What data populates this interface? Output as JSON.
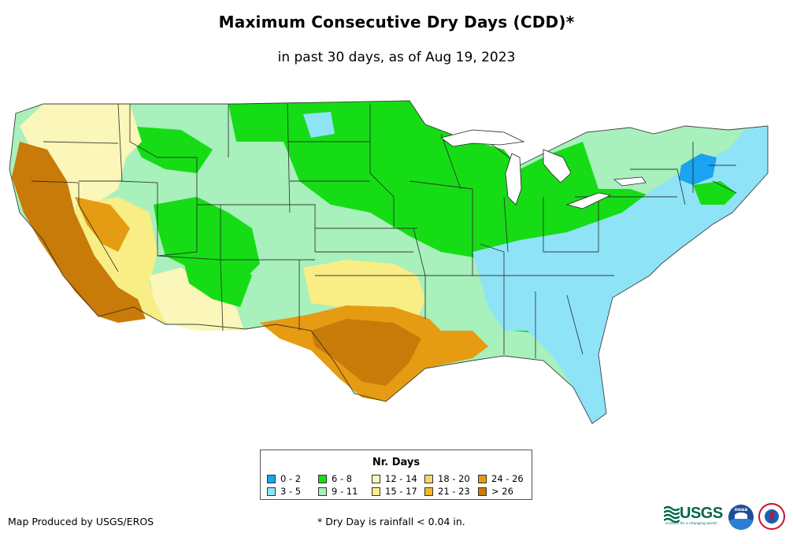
{
  "title": "Maximum Consecutive Dry Days (CDD)*",
  "subtitle": "in past 30 days, as of Aug 19, 2023",
  "legend": {
    "title": "Nr. Days",
    "items": [
      {
        "label": "0 - 2",
        "color": "#1aa3f0"
      },
      {
        "label": "3 - 5",
        "color": "#8fe3f7"
      },
      {
        "label": "6 - 8",
        "color": "#16dc16"
      },
      {
        "label": "9 - 11",
        "color": "#a8f0bc"
      },
      {
        "label": "12 - 14",
        "color": "#fbf6b9"
      },
      {
        "label": "15 - 17",
        "color": "#f8ee85"
      },
      {
        "label": "18 - 20",
        "color": "#f3d86a"
      },
      {
        "label": "21 - 23",
        "color": "#f5b71a"
      },
      {
        "label": "24 - 26",
        "color": "#e59b12"
      },
      {
        "label": "> 26",
        "color": "#c87b09"
      }
    ]
  },
  "credit": "Map Produced by USGS/EROS",
  "footnote": "* Dry Day is rainfall < 0.04 in.",
  "logos": {
    "usgs": "USGS",
    "usgs_tagline": "science for a changing world",
    "noaa": "noaa"
  }
}
